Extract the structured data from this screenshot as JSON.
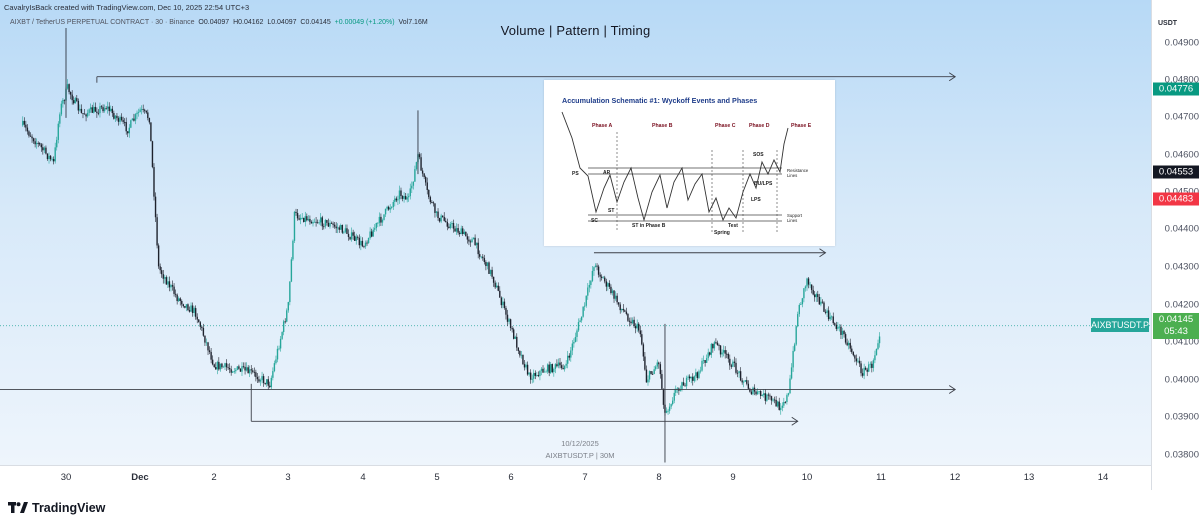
{
  "credit": "CavalryIsBack created with TradingView.com, Dec 10, 2025 22:54 UTC+3",
  "symbol_line": {
    "title": "AIXBT / TetherUS PERPETUAL CONTRACT · 30 · Binance",
    "open": "O0.04097",
    "high": "H0.04162",
    "low": "L0.04097",
    "close": "C0.04145",
    "change": "+0.00049 (+1.20%)",
    "volume": "Vol7.16M"
  },
  "main_title": "Volume   |   Pattern   |   Timing",
  "watermark": {
    "date": "10/12/2025",
    "symbol": "AIXBTUSDT.P  |  30M"
  },
  "schematic": {
    "title": "Accumulation Schematic #1: Wyckoff Events and Phases",
    "phases": [
      "Phase A",
      "Phase B",
      "Phase C",
      "Phase D",
      "Phase E"
    ],
    "labels": {
      "ps": "PS",
      "sc": "SC",
      "ar": "AR",
      "st": "ST",
      "st_b": "ST in Phase B",
      "spring": "Spring",
      "test": "Test",
      "sos": "SOS",
      "bu_lps": "BU/LPS",
      "lps": "LPS",
      "resistance": "Resistance\nLines",
      "support": "Support\nLines"
    }
  },
  "price_scale": {
    "currency": "USDT",
    "ticks": [
      "0.04900",
      "0.04800",
      "0.04700",
      "0.04600",
      "0.04500",
      "0.04400",
      "0.04300",
      "0.04200",
      "0.04100",
      "0.04000",
      "0.03900",
      "0.03800"
    ],
    "badges": [
      {
        "value": "0.04776",
        "color": "#089981"
      },
      {
        "value": "0.04553",
        "color": "#131722"
      },
      {
        "value": "0.04483",
        "color": "#f23645"
      },
      {
        "value": "0.04145",
        "color": "#4caf50"
      }
    ],
    "countdown": "05:43"
  },
  "current_symbol": "AIXBTUSDT.P",
  "time_axis": {
    "labels": [
      "30",
      "Dec",
      "2",
      "3",
      "4",
      "5",
      "6",
      "7",
      "8",
      "9",
      "10",
      "11",
      "12",
      "13",
      "14"
    ]
  },
  "logo_text": "TradingView",
  "icons": {
    "logo": "tradingview-logo-icon"
  },
  "colors": {
    "up": "#26a69a",
    "down": "#1e222d",
    "line": "#3c3f48",
    "accent": "#2962ff"
  },
  "chart_data": {
    "type": "candlestick",
    "x_unit": "30-minute bars",
    "x_range": [
      "2025-11-29",
      "2025-12-14"
    ],
    "ylim": [
      0.0375,
      0.0495
    ],
    "price_path": [
      {
        "time": "2025-11-29 10:00",
        "price": 0.0468
      },
      {
        "time": "2025-11-29 20:00",
        "price": 0.0458
      },
      {
        "time": "2025-11-29 22:00",
        "price": 0.0472
      },
      {
        "time": "2025-11-30 00:30",
        "price": 0.0478
      },
      {
        "time": "2025-11-30 05:00",
        "price": 0.0471
      },
      {
        "time": "2025-11-30 13:00",
        "price": 0.0473
      },
      {
        "time": "2025-11-30 20:00",
        "price": 0.0467
      },
      {
        "time": "2025-12-01 00:00",
        "price": 0.0472
      },
      {
        "time": "2025-12-01 03:00",
        "price": 0.047
      },
      {
        "time": "2025-12-01 06:00",
        "price": 0.043
      },
      {
        "time": "2025-12-01 12:00",
        "price": 0.0422
      },
      {
        "time": "2025-12-01 18:00",
        "price": 0.0418
      },
      {
        "time": "2025-12-02 00:00",
        "price": 0.0404
      },
      {
        "time": "2025-12-02 12:00",
        "price": 0.0402
      },
      {
        "time": "2025-12-02 18:00",
        "price": 0.0399
      },
      {
        "time": "2025-12-03 00:00",
        "price": 0.042
      },
      {
        "time": "2025-12-03 02:00",
        "price": 0.0444
      },
      {
        "time": "2025-12-03 12:00",
        "price": 0.0442
      },
      {
        "time": "2025-12-03 18:00",
        "price": 0.044
      },
      {
        "time": "2025-12-04 00:00",
        "price": 0.0436
      },
      {
        "time": "2025-12-04 06:00",
        "price": 0.0443
      },
      {
        "time": "2025-12-04 12:00",
        "price": 0.045
      },
      {
        "time": "2025-12-04 15:00",
        "price": 0.0448
      },
      {
        "time": "2025-12-04 18:00",
        "price": 0.046
      },
      {
        "time": "2025-12-04 21:00",
        "price": 0.045
      },
      {
        "time": "2025-12-05 00:00",
        "price": 0.0444
      },
      {
        "time": "2025-12-05 12:00",
        "price": 0.0437
      },
      {
        "time": "2025-12-05 18:00",
        "price": 0.0428
      },
      {
        "time": "2025-12-06 00:00",
        "price": 0.0414
      },
      {
        "time": "2025-12-06 06:00",
        "price": 0.0401
      },
      {
        "time": "2025-12-06 12:00",
        "price": 0.0403
      },
      {
        "time": "2025-12-06 18:00",
        "price": 0.0404
      },
      {
        "time": "2025-12-07 00:00",
        "price": 0.042
      },
      {
        "time": "2025-12-07 03:00",
        "price": 0.0431
      },
      {
        "time": "2025-12-07 12:00",
        "price": 0.0419
      },
      {
        "time": "2025-12-07 18:00",
        "price": 0.0413
      },
      {
        "time": "2025-12-07 20:00",
        "price": 0.04
      },
      {
        "time": "2025-12-08 00:00",
        "price": 0.0405
      },
      {
        "time": "2025-12-08 02:00",
        "price": 0.0391
      },
      {
        "time": "2025-12-08 06:00",
        "price": 0.0398
      },
      {
        "time": "2025-12-08 12:00",
        "price": 0.0401
      },
      {
        "time": "2025-12-08 18:00",
        "price": 0.041
      },
      {
        "time": "2025-12-09 00:00",
        "price": 0.0404
      },
      {
        "time": "2025-12-09 06:00",
        "price": 0.0397
      },
      {
        "time": "2025-12-09 12:00",
        "price": 0.0395
      },
      {
        "time": "2025-12-09 15:00",
        "price": 0.0393
      },
      {
        "time": "2025-12-09 18:00",
        "price": 0.0396
      },
      {
        "time": "2025-12-09 21:00",
        "price": 0.0418
      },
      {
        "time": "2025-12-10 00:00",
        "price": 0.0427
      },
      {
        "time": "2025-12-10 06:00",
        "price": 0.0418
      },
      {
        "time": "2025-12-10 12:00",
        "price": 0.0412
      },
      {
        "time": "2025-12-10 18:00",
        "price": 0.0402
      },
      {
        "time": "2025-12-10 21:00",
        "price": 0.0404
      },
      {
        "time": "2025-12-11 00:00",
        "price": 0.04145
      }
    ],
    "wicks": [
      {
        "time": "2025-11-30 00:00",
        "high": 0.0494,
        "low": 0.047
      },
      {
        "time": "2025-12-04 18:00",
        "high": 0.0472,
        "low": 0.0455
      },
      {
        "time": "2025-12-08 02:00",
        "high": 0.0415,
        "low": 0.0378
      }
    ],
    "lines": [
      {
        "type": "ray",
        "from": "2025-11-30 10:00",
        "to": "2025-12-12",
        "price": 0.0481
      },
      {
        "type": "horizontal",
        "from": "2025-11-28 12:00",
        "to": "2025-12-12",
        "price": 0.03975
      },
      {
        "type": "ray",
        "from": "2025-12-07 03:00",
        "to": "2025-12-10 06:00",
        "price": 0.0434
      },
      {
        "type": "ray",
        "from": "2025-12-02 12:00",
        "to": "2025-12-09 21:00",
        "price": 0.0389
      },
      {
        "type": "drop",
        "time": "2025-12-02 12:00",
        "from": 0.0389,
        "to": 0.0399
      }
    ],
    "current_price": 0.04145
  }
}
